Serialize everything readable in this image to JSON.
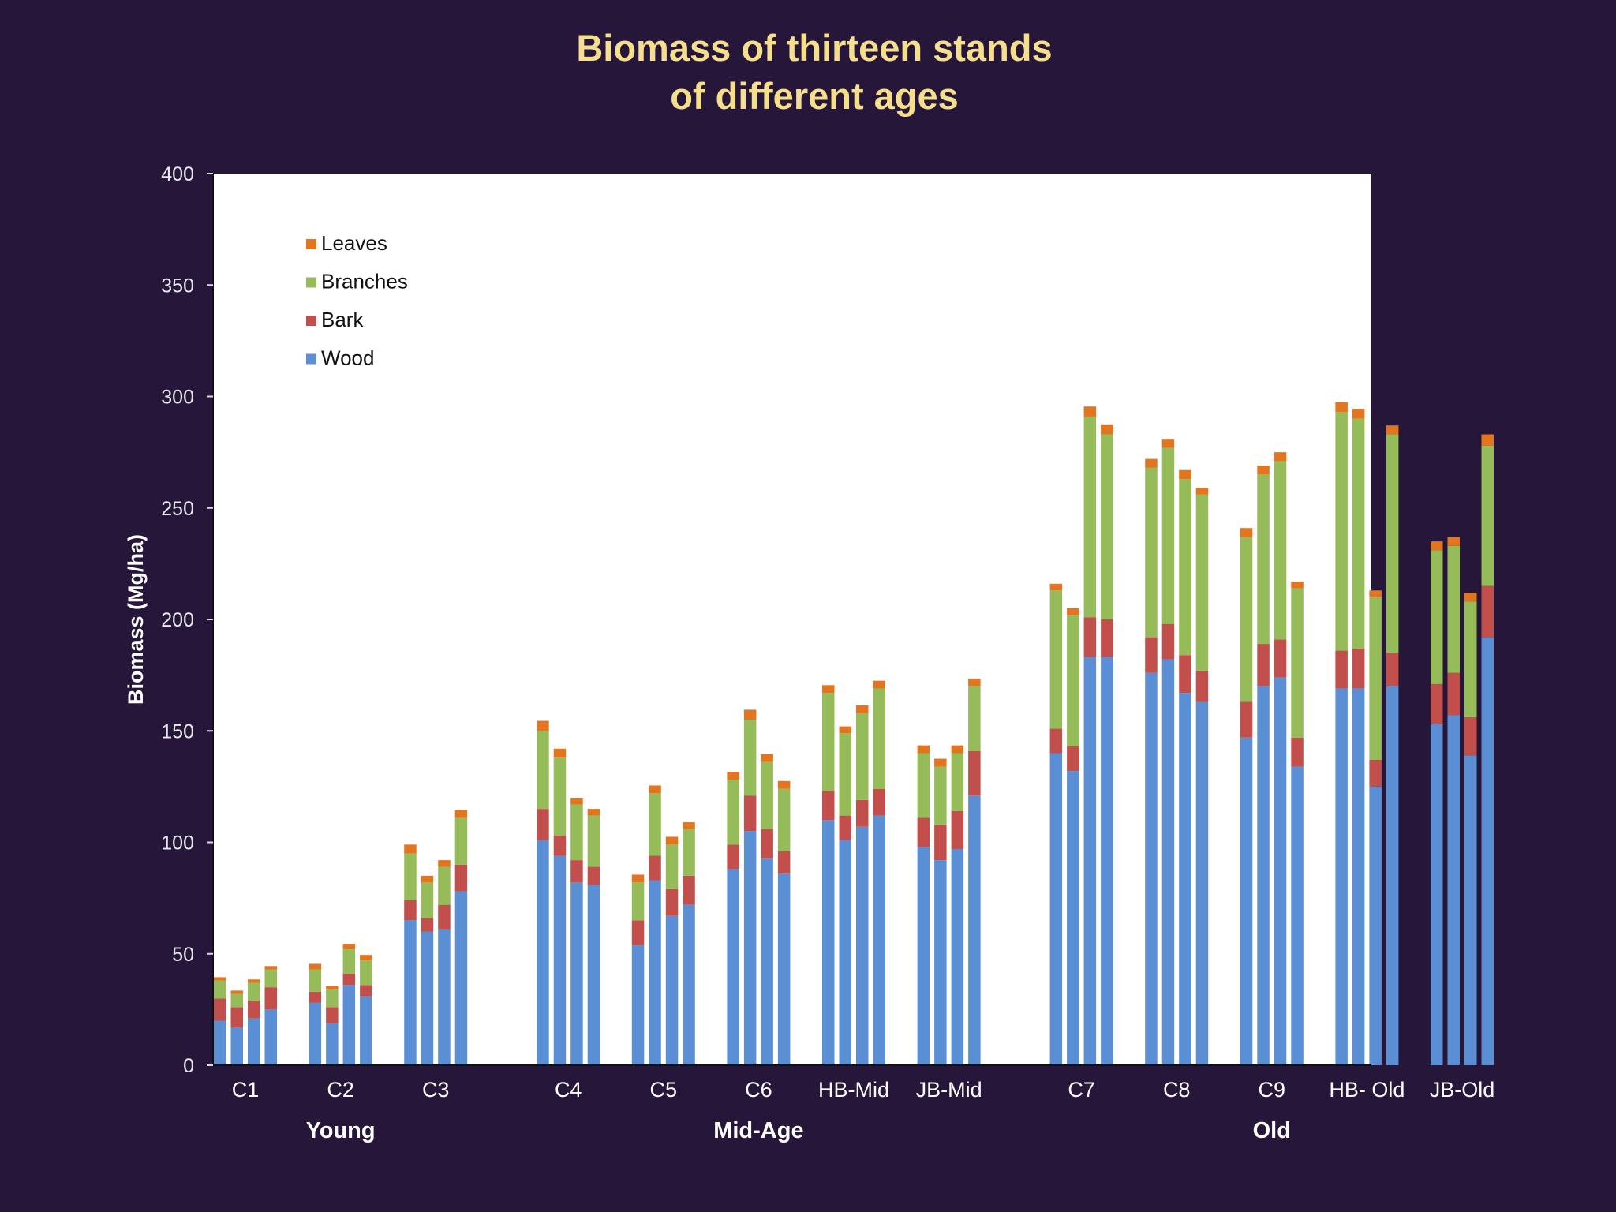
{
  "slide": {
    "title_line1": "Biomass of thirteen stands",
    "title_line2": "of different ages"
  },
  "chart_data": {
    "type": "bar",
    "stacked": true,
    "ylabel": "Biomass (Mg/ha)",
    "ylim": [
      0,
      400
    ],
    "yticks": [
      0,
      50,
      100,
      150,
      200,
      250,
      300,
      350,
      400
    ],
    "grid": false,
    "legend_position": "top-left",
    "series_order": [
      "Leaves",
      "Branches",
      "Bark",
      "Wood"
    ],
    "colors": {
      "Wood": "#5b8fd5",
      "Bark": "#c24f4b",
      "Branches": "#96bc59",
      "Leaves": "#e3751f"
    },
    "groups": [
      {
        "label": "Young",
        "stands": [
          "C1",
          "C2",
          "C3"
        ]
      },
      {
        "label": "Mid-Age",
        "stands": [
          "C4",
          "C5",
          "C6",
          "HB-Mid",
          "JB-Mid"
        ]
      },
      {
        "label": "Old",
        "stands": [
          "C7",
          "C8",
          "C9",
          "HB- Old",
          "JB-Old"
        ]
      }
    ],
    "stands": [
      {
        "label": "C1",
        "bars": [
          {
            "wood": 20,
            "bark": 10,
            "branches": 8,
            "leaves": 1.5
          },
          {
            "wood": 17,
            "bark": 9,
            "branches": 6,
            "leaves": 1.5
          },
          {
            "wood": 21,
            "bark": 8,
            "branches": 8,
            "leaves": 1.5
          },
          {
            "wood": 25,
            "bark": 10,
            "branches": 8,
            "leaves": 1.5
          }
        ]
      },
      {
        "label": "C2",
        "bars": [
          {
            "wood": 28,
            "bark": 5,
            "branches": 10,
            "leaves": 2.5
          },
          {
            "wood": 19,
            "bark": 7,
            "branches": 8,
            "leaves": 1.5
          },
          {
            "wood": 36,
            "bark": 5,
            "branches": 11,
            "leaves": 2.5
          },
          {
            "wood": 31,
            "bark": 5,
            "branches": 11,
            "leaves": 2.5
          }
        ]
      },
      {
        "label": "C3",
        "bars": [
          {
            "wood": 65,
            "bark": 9,
            "branches": 21,
            "leaves": 4
          },
          {
            "wood": 60,
            "bark": 6,
            "branches": 16,
            "leaves": 3
          },
          {
            "wood": 61,
            "bark": 11,
            "branches": 17,
            "leaves": 3
          },
          {
            "wood": 78,
            "bark": 12,
            "branches": 21,
            "leaves": 3.5
          }
        ]
      },
      {
        "label": "C4",
        "bars": [
          {
            "wood": 101,
            "bark": 14,
            "branches": 35,
            "leaves": 4.5
          },
          {
            "wood": 94,
            "bark": 9,
            "branches": 35,
            "leaves": 4
          },
          {
            "wood": 82,
            "bark": 10,
            "branches": 25,
            "leaves": 3
          },
          {
            "wood": 81,
            "bark": 8,
            "branches": 23,
            "leaves": 3
          }
        ]
      },
      {
        "label": "C5",
        "bars": [
          {
            "wood": 54,
            "bark": 11,
            "branches": 17,
            "leaves": 3.5
          },
          {
            "wood": 83,
            "bark": 11,
            "branches": 28,
            "leaves": 3.5
          },
          {
            "wood": 67,
            "bark": 12,
            "branches": 20,
            "leaves": 3.5
          },
          {
            "wood": 72,
            "bark": 13,
            "branches": 21,
            "leaves": 3
          }
        ]
      },
      {
        "label": "C6",
        "bars": [
          {
            "wood": 88,
            "bark": 11,
            "branches": 29,
            "leaves": 3.5
          },
          {
            "wood": 105,
            "bark": 16,
            "branches": 34,
            "leaves": 4.5
          },
          {
            "wood": 93,
            "bark": 13,
            "branches": 30,
            "leaves": 3.5
          },
          {
            "wood": 86,
            "bark": 10,
            "branches": 28,
            "leaves": 3.5
          }
        ]
      },
      {
        "label": "HB-Mid",
        "bars": [
          {
            "wood": 110,
            "bark": 13,
            "branches": 44,
            "leaves": 3.5
          },
          {
            "wood": 101,
            "bark": 11,
            "branches": 37,
            "leaves": 3
          },
          {
            "wood": 107,
            "bark": 12,
            "branches": 39,
            "leaves": 3.5
          },
          {
            "wood": 112,
            "bark": 12,
            "branches": 45,
            "leaves": 3.5
          }
        ]
      },
      {
        "label": "JB-Mid",
        "bars": [
          {
            "wood": 98,
            "bark": 13,
            "branches": 29,
            "leaves": 3.5
          },
          {
            "wood": 92,
            "bark": 16,
            "branches": 26,
            "leaves": 3.5
          },
          {
            "wood": 97,
            "bark": 17,
            "branches": 26,
            "leaves": 3.5
          },
          {
            "wood": 121,
            "bark": 20,
            "branches": 29,
            "leaves": 3.5
          }
        ]
      },
      {
        "label": "C7",
        "bars": [
          {
            "wood": 140,
            "bark": 11,
            "branches": 62,
            "leaves": 3
          },
          {
            "wood": 132,
            "bark": 11,
            "branches": 59,
            "leaves": 3
          },
          {
            "wood": 183,
            "bark": 18,
            "branches": 90,
            "leaves": 4.5
          },
          {
            "wood": 183,
            "bark": 17,
            "branches": 83,
            "leaves": 4.5
          }
        ]
      },
      {
        "label": "C8",
        "bars": [
          {
            "wood": 176,
            "bark": 16,
            "branches": 76,
            "leaves": 4
          },
          {
            "wood": 182,
            "bark": 16,
            "branches": 79,
            "leaves": 4
          },
          {
            "wood": 167,
            "bark": 17,
            "branches": 79,
            "leaves": 4
          },
          {
            "wood": 163,
            "bark": 14,
            "branches": 79,
            "leaves": 3
          }
        ]
      },
      {
        "label": "C9",
        "bars": [
          {
            "wood": 147,
            "bark": 16,
            "branches": 74,
            "leaves": 4
          },
          {
            "wood": 170,
            "bark": 19,
            "branches": 76,
            "leaves": 4
          },
          {
            "wood": 174,
            "bark": 17,
            "branches": 80,
            "leaves": 4
          },
          {
            "wood": 134,
            "bark": 13,
            "branches": 67,
            "leaves": 3
          }
        ]
      },
      {
        "label": "HB- Old",
        "bars": [
          {
            "wood": 169,
            "bark": 17,
            "branches": 107,
            "leaves": 4.5
          },
          {
            "wood": 169,
            "bark": 18,
            "branches": 103,
            "leaves": 4.5
          },
          {
            "wood": 125,
            "bark": 12,
            "branches": 73,
            "leaves": 3
          },
          {
            "wood": 170,
            "bark": 15,
            "branches": 98,
            "leaves": 4
          }
        ]
      },
      {
        "label": "JB-Old",
        "bars": [
          {
            "wood": 153,
            "bark": 18,
            "branches": 60,
            "leaves": 4
          },
          {
            "wood": 157,
            "bark": 19,
            "branches": 57,
            "leaves": 4
          },
          {
            "wood": 139,
            "bark": 17,
            "branches": 52,
            "leaves": 4
          },
          {
            "wood": 192,
            "bark": 23,
            "branches": 63,
            "leaves": 5
          }
        ]
      }
    ]
  }
}
